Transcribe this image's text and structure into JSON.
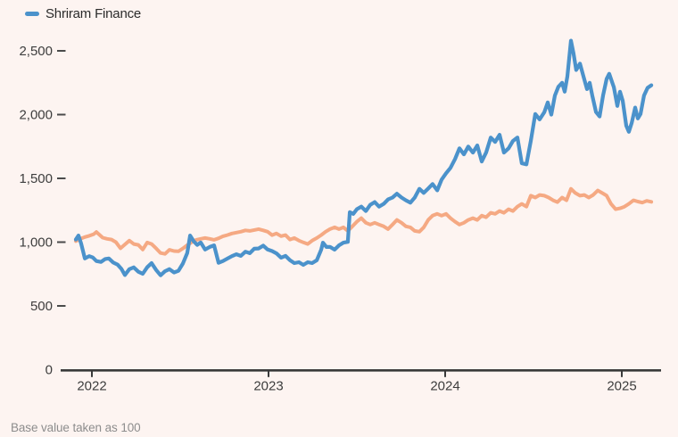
{
  "page": {
    "background": "#fdf4f1"
  },
  "legend": {
    "items": [
      {
        "label": "Shriram Finance",
        "color": "#4b92cb"
      }
    ]
  },
  "footer": {
    "note": "Base value taken as 100"
  },
  "chart_data": {
    "type": "line",
    "title": "",
    "xlabel": "",
    "ylabel": "",
    "grid": false,
    "legend_position": "top-left",
    "background_color": "#fdf4f1",
    "axis_color": "#3a3a3a",
    "tick_label_color": "#3d3d3d",
    "x_axis": {
      "range": [
        2021.82,
        2025.22
      ],
      "ticks": [
        2022,
        2023,
        2024,
        2025
      ],
      "tick_labels": [
        "2022",
        "2023",
        "2024",
        "2025"
      ]
    },
    "y_axis": {
      "range": [
        0,
        2600
      ],
      "ticks": [
        0,
        500,
        1000,
        1500,
        2000,
        2500
      ],
      "tick_labels": [
        "0",
        "500",
        "1,000",
        "1,500",
        "2,000",
        "2,500"
      ]
    },
    "note": "Base value taken as 100",
    "series": [
      {
        "name": "",
        "color": "#f5a983",
        "stroke_width": 4,
        "points": [
          [
            2021.909,
            1008
          ],
          [
            2021.934,
            1025
          ],
          [
            2021.96,
            1040
          ],
          [
            2021.985,
            1050
          ],
          [
            2022.01,
            1062
          ],
          [
            2022.025,
            1080
          ],
          [
            2022.045,
            1055
          ],
          [
            2022.061,
            1035
          ],
          [
            2022.086,
            1026
          ],
          [
            2022.111,
            1020
          ],
          [
            2022.136,
            1000
          ],
          [
            2022.162,
            952
          ],
          [
            2022.187,
            982
          ],
          [
            2022.212,
            1012
          ],
          [
            2022.237,
            985
          ],
          [
            2022.263,
            978
          ],
          [
            2022.288,
            942
          ],
          [
            2022.313,
            997
          ],
          [
            2022.338,
            985
          ],
          [
            2022.364,
            950
          ],
          [
            2022.389,
            915
          ],
          [
            2022.414,
            908
          ],
          [
            2022.439,
            940
          ],
          [
            2022.465,
            930
          ],
          [
            2022.49,
            928
          ],
          [
            2022.515,
            950
          ],
          [
            2022.54,
            976
          ],
          [
            2022.566,
            1000
          ],
          [
            2022.591,
            1018
          ],
          [
            2022.616,
            1026
          ],
          [
            2022.641,
            1032
          ],
          [
            2022.667,
            1026
          ],
          [
            2022.692,
            1018
          ],
          [
            2022.717,
            1030
          ],
          [
            2022.742,
            1046
          ],
          [
            2022.768,
            1056
          ],
          [
            2022.793,
            1068
          ],
          [
            2022.818,
            1075
          ],
          [
            2022.843,
            1082
          ],
          [
            2022.869,
            1092
          ],
          [
            2022.894,
            1088
          ],
          [
            2022.919,
            1095
          ],
          [
            2022.944,
            1102
          ],
          [
            2022.97,
            1092
          ],
          [
            2022.995,
            1082
          ],
          [
            2023.02,
            1055
          ],
          [
            2023.045,
            1068
          ],
          [
            2023.071,
            1047
          ],
          [
            2023.096,
            1055
          ],
          [
            2023.121,
            1020
          ],
          [
            2023.146,
            1032
          ],
          [
            2023.172,
            1012
          ],
          [
            2023.197,
            998
          ],
          [
            2023.222,
            985
          ],
          [
            2023.247,
            1012
          ],
          [
            2023.273,
            1032
          ],
          [
            2023.298,
            1055
          ],
          [
            2023.323,
            1082
          ],
          [
            2023.348,
            1102
          ],
          [
            2023.374,
            1116
          ],
          [
            2023.399,
            1102
          ],
          [
            2023.424,
            1116
          ],
          [
            2023.449,
            1088
          ],
          [
            2023.475,
            1124
          ],
          [
            2023.5,
            1160
          ],
          [
            2023.525,
            1188
          ],
          [
            2023.551,
            1152
          ],
          [
            2023.576,
            1138
          ],
          [
            2023.601,
            1152
          ],
          [
            2023.626,
            1138
          ],
          [
            2023.652,
            1124
          ],
          [
            2023.677,
            1102
          ],
          [
            2023.702,
            1138
          ],
          [
            2023.727,
            1174
          ],
          [
            2023.753,
            1152
          ],
          [
            2023.778,
            1124
          ],
          [
            2023.803,
            1116
          ],
          [
            2023.828,
            1088
          ],
          [
            2023.854,
            1082
          ],
          [
            2023.879,
            1116
          ],
          [
            2023.904,
            1174
          ],
          [
            2023.929,
            1208
          ],
          [
            2023.955,
            1222
          ],
          [
            2023.98,
            1208
          ],
          [
            2024.005,
            1222
          ],
          [
            2024.03,
            1188
          ],
          [
            2024.056,
            1160
          ],
          [
            2024.081,
            1138
          ],
          [
            2024.106,
            1152
          ],
          [
            2024.131,
            1174
          ],
          [
            2024.157,
            1188
          ],
          [
            2024.182,
            1174
          ],
          [
            2024.207,
            1208
          ],
          [
            2024.232,
            1195
          ],
          [
            2024.258,
            1230
          ],
          [
            2024.283,
            1222
          ],
          [
            2024.308,
            1244
          ],
          [
            2024.333,
            1230
          ],
          [
            2024.359,
            1258
          ],
          [
            2024.384,
            1244
          ],
          [
            2024.409,
            1278
          ],
          [
            2024.434,
            1300
          ],
          [
            2024.46,
            1278
          ],
          [
            2024.485,
            1364
          ],
          [
            2024.51,
            1350
          ],
          [
            2024.535,
            1370
          ],
          [
            2024.561,
            1364
          ],
          [
            2024.586,
            1350
          ],
          [
            2024.611,
            1328
          ],
          [
            2024.636,
            1314
          ],
          [
            2024.662,
            1350
          ],
          [
            2024.687,
            1328
          ],
          [
            2024.712,
            1418
          ],
          [
            2024.737,
            1385
          ],
          [
            2024.763,
            1364
          ],
          [
            2024.788,
            1370
          ],
          [
            2024.813,
            1350
          ],
          [
            2024.838,
            1370
          ],
          [
            2024.864,
            1405
          ],
          [
            2024.889,
            1385
          ],
          [
            2024.914,
            1364
          ],
          [
            2024.939,
            1300
          ],
          [
            2024.965,
            1258
          ],
          [
            2024.99,
            1265
          ],
          [
            2025.015,
            1278
          ],
          [
            2025.04,
            1300
          ],
          [
            2025.066,
            1328
          ],
          [
            2025.091,
            1318
          ],
          [
            2025.116,
            1310
          ],
          [
            2025.141,
            1324
          ],
          [
            2025.167,
            1316
          ]
        ]
      },
      {
        "name": "Shriram Finance",
        "color": "#4b92cb",
        "stroke_width": 4.2,
        "points": [
          [
            2021.909,
            1020
          ],
          [
            2021.924,
            1052
          ],
          [
            2021.939,
            990
          ],
          [
            2021.96,
            872
          ],
          [
            2021.985,
            890
          ],
          [
            2022.005,
            880
          ],
          [
            2022.025,
            852
          ],
          [
            2022.051,
            845
          ],
          [
            2022.076,
            868
          ],
          [
            2022.096,
            872
          ],
          [
            2022.121,
            840
          ],
          [
            2022.146,
            823
          ],
          [
            2022.167,
            790
          ],
          [
            2022.187,
            742
          ],
          [
            2022.212,
            788
          ],
          [
            2022.237,
            802
          ],
          [
            2022.263,
            768
          ],
          [
            2022.288,
            752
          ],
          [
            2022.313,
            803
          ],
          [
            2022.338,
            836
          ],
          [
            2022.364,
            781
          ],
          [
            2022.389,
            740
          ],
          [
            2022.414,
            772
          ],
          [
            2022.439,
            788
          ],
          [
            2022.465,
            762
          ],
          [
            2022.49,
            775
          ],
          [
            2022.515,
            832
          ],
          [
            2022.54,
            915
          ],
          [
            2022.556,
            1052
          ],
          [
            2022.576,
            1008
          ],
          [
            2022.596,
            978
          ],
          [
            2022.616,
            997
          ],
          [
            2022.641,
            942
          ],
          [
            2022.667,
            962
          ],
          [
            2022.692,
            975
          ],
          [
            2022.717,
            838
          ],
          [
            2022.742,
            852
          ],
          [
            2022.768,
            872
          ],
          [
            2022.793,
            890
          ],
          [
            2022.818,
            905
          ],
          [
            2022.843,
            892
          ],
          [
            2022.869,
            925
          ],
          [
            2022.894,
            913
          ],
          [
            2022.919,
            948
          ],
          [
            2022.944,
            950
          ],
          [
            2022.97,
            973
          ],
          [
            2022.995,
            942
          ],
          [
            2023.02,
            930
          ],
          [
            2023.045,
            912
          ],
          [
            2023.071,
            878
          ],
          [
            2023.096,
            892
          ],
          [
            2023.121,
            858
          ],
          [
            2023.146,
            836
          ],
          [
            2023.172,
            843
          ],
          [
            2023.197,
            822
          ],
          [
            2023.222,
            843
          ],
          [
            2023.247,
            836
          ],
          [
            2023.273,
            858
          ],
          [
            2023.298,
            940
          ],
          [
            2023.308,
            996
          ],
          [
            2023.328,
            962
          ],
          [
            2023.348,
            963
          ],
          [
            2023.374,
            941
          ],
          [
            2023.399,
            975
          ],
          [
            2023.424,
            996
          ],
          [
            2023.449,
            1002
          ],
          [
            2023.46,
            1235
          ],
          [
            2023.48,
            1222
          ],
          [
            2023.5,
            1258
          ],
          [
            2023.525,
            1278
          ],
          [
            2023.551,
            1244
          ],
          [
            2023.576,
            1292
          ],
          [
            2023.601,
            1314
          ],
          [
            2023.626,
            1278
          ],
          [
            2023.652,
            1300
          ],
          [
            2023.677,
            1335
          ],
          [
            2023.702,
            1350
          ],
          [
            2023.727,
            1380
          ],
          [
            2023.753,
            1350
          ],
          [
            2023.778,
            1328
          ],
          [
            2023.803,
            1310
          ],
          [
            2023.828,
            1350
          ],
          [
            2023.854,
            1418
          ],
          [
            2023.879,
            1386
          ],
          [
            2023.904,
            1420
          ],
          [
            2023.929,
            1455
          ],
          [
            2023.955,
            1406
          ],
          [
            2023.98,
            1490
          ],
          [
            2024.005,
            1540
          ],
          [
            2024.03,
            1582
          ],
          [
            2024.056,
            1652
          ],
          [
            2024.081,
            1736
          ],
          [
            2024.106,
            1688
          ],
          [
            2024.131,
            1750
          ],
          [
            2024.157,
            1702
          ],
          [
            2024.182,
            1758
          ],
          [
            2024.207,
            1632
          ],
          [
            2024.232,
            1702
          ],
          [
            2024.258,
            1820
          ],
          [
            2024.283,
            1786
          ],
          [
            2024.308,
            1842
          ],
          [
            2024.333,
            1702
          ],
          [
            2024.359,
            1736
          ],
          [
            2024.384,
            1794
          ],
          [
            2024.409,
            1820
          ],
          [
            2024.434,
            1618
          ],
          [
            2024.46,
            1610
          ],
          [
            2024.485,
            1794
          ],
          [
            2024.51,
            2005
          ],
          [
            2024.535,
            1962
          ],
          [
            2024.561,
            2018
          ],
          [
            2024.581,
            2096
          ],
          [
            2024.601,
            2000
          ],
          [
            2024.621,
            2150
          ],
          [
            2024.641,
            2218
          ],
          [
            2024.662,
            2250
          ],
          [
            2024.677,
            2180
          ],
          [
            2024.692,
            2300
          ],
          [
            2024.712,
            2580
          ],
          [
            2024.727,
            2480
          ],
          [
            2024.742,
            2350
          ],
          [
            2024.763,
            2400
          ],
          [
            2024.783,
            2300
          ],
          [
            2024.803,
            2200
          ],
          [
            2024.818,
            2250
          ],
          [
            2024.833,
            2150
          ],
          [
            2024.854,
            2020
          ],
          [
            2024.874,
            1985
          ],
          [
            2024.894,
            2150
          ],
          [
            2024.914,
            2280
          ],
          [
            2024.929,
            2320
          ],
          [
            2024.955,
            2215
          ],
          [
            2024.975,
            2068
          ],
          [
            2024.99,
            2180
          ],
          [
            2025.005,
            2110
          ],
          [
            2025.025,
            1913
          ],
          [
            2025.04,
            1865
          ],
          [
            2025.056,
            1934
          ],
          [
            2025.076,
            2055
          ],
          [
            2025.091,
            1970
          ],
          [
            2025.106,
            2005
          ],
          [
            2025.126,
            2150
          ],
          [
            2025.146,
            2210
          ],
          [
            2025.167,
            2230
          ]
        ]
      }
    ]
  }
}
